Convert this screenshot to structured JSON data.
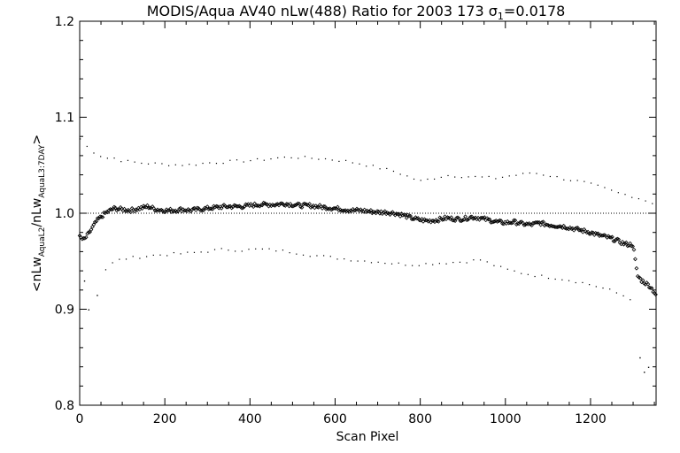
{
  "chart_data": {
    "type": "scatter",
    "title_main": "MODIS/Aqua AV40 nLw(488) Ratio for 2003 173 ",
    "title_sigma": "σ",
    "title_sigma_sub": "1",
    "title_value": "=0.0178",
    "xlabel": "Scan Pixel",
    "ylabel_parts": {
      "open": "<nLw",
      "sub1": "AquaL2",
      "mid": "/nLw",
      "sub2": "AquaL3:7DAY",
      "close": ">"
    },
    "xlim": [
      0,
      1354
    ],
    "ylim": [
      0.8,
      1.2
    ],
    "xticks": [
      0,
      200,
      400,
      600,
      800,
      1000,
      1200
    ],
    "xtick_labels": [
      "0",
      "200",
      "400",
      "600",
      "800",
      "1000",
      "1200"
    ],
    "yticks": [
      0.8,
      0.9,
      1.0,
      1.1,
      1.2
    ],
    "ytick_labels": [
      "0.8",
      "0.9",
      "1.0",
      "1.1",
      "1.2"
    ],
    "reference_line": 1.0,
    "colors": {
      "marks": "#000000",
      "background": "#ffffff"
    },
    "mean_profile": [
      [
        0,
        0.975
      ],
      [
        10,
        0.972
      ],
      [
        20,
        0.978
      ],
      [
        30,
        0.985
      ],
      [
        40,
        0.992
      ],
      [
        60,
        1.0
      ],
      [
        80,
        1.005
      ],
      [
        100,
        1.004
      ],
      [
        120,
        1.003
      ],
      [
        140,
        1.005
      ],
      [
        160,
        1.007
      ],
      [
        180,
        1.004
      ],
      [
        200,
        1.003
      ],
      [
        220,
        1.003
      ],
      [
        240,
        1.004
      ],
      [
        260,
        1.003
      ],
      [
        280,
        1.004
      ],
      [
        300,
        1.005
      ],
      [
        320,
        1.006
      ],
      [
        340,
        1.007
      ],
      [
        360,
        1.007
      ],
      [
        380,
        1.007
      ],
      [
        400,
        1.008
      ],
      [
        420,
        1.009
      ],
      [
        440,
        1.009
      ],
      [
        460,
        1.009
      ],
      [
        480,
        1.01
      ],
      [
        500,
        1.009
      ],
      [
        520,
        1.008
      ],
      [
        540,
        1.008
      ],
      [
        560,
        1.007
      ],
      [
        580,
        1.006
      ],
      [
        600,
        1.005
      ],
      [
        620,
        1.004
      ],
      [
        640,
        1.003
      ],
      [
        660,
        1.003
      ],
      [
        680,
        1.002
      ],
      [
        700,
        1.001
      ],
      [
        720,
        1.001
      ],
      [
        740,
        1.0
      ],
      [
        760,
        0.998
      ],
      [
        780,
        0.995
      ],
      [
        800,
        0.993
      ],
      [
        820,
        0.992
      ],
      [
        840,
        0.993
      ],
      [
        860,
        0.995
      ],
      [
        880,
        0.994
      ],
      [
        900,
        0.994
      ],
      [
        920,
        0.996
      ],
      [
        940,
        0.995
      ],
      [
        960,
        0.993
      ],
      [
        980,
        0.991
      ],
      [
        1000,
        0.99
      ],
      [
        1020,
        0.991
      ],
      [
        1040,
        0.989
      ],
      [
        1060,
        0.988
      ],
      [
        1080,
        0.99
      ],
      [
        1100,
        0.988
      ],
      [
        1120,
        0.987
      ],
      [
        1140,
        0.986
      ],
      [
        1160,
        0.984
      ],
      [
        1180,
        0.982
      ],
      [
        1200,
        0.98
      ],
      [
        1220,
        0.977
      ],
      [
        1240,
        0.975
      ],
      [
        1260,
        0.972
      ],
      [
        1280,
        0.968
      ],
      [
        1300,
        0.967
      ],
      [
        1310,
        0.935
      ],
      [
        1320,
        0.93
      ],
      [
        1340,
        0.924
      ],
      [
        1354,
        0.915
      ]
    ],
    "upper_profile": [
      [
        0,
        1.078
      ],
      [
        20,
        1.068
      ],
      [
        40,
        1.062
      ],
      [
        60,
        1.058
      ],
      [
        80,
        1.058
      ],
      [
        100,
        1.055
      ],
      [
        140,
        1.053
      ],
      [
        180,
        1.052
      ],
      [
        220,
        1.051
      ],
      [
        260,
        1.051
      ],
      [
        300,
        1.053
      ],
      [
        340,
        1.054
      ],
      [
        380,
        1.055
      ],
      [
        420,
        1.056
      ],
      [
        460,
        1.058
      ],
      [
        500,
        1.059
      ],
      [
        540,
        1.058
      ],
      [
        580,
        1.057
      ],
      [
        620,
        1.055
      ],
      [
        660,
        1.052
      ],
      [
        700,
        1.048
      ],
      [
        740,
        1.044
      ],
      [
        780,
        1.037
      ],
      [
        800,
        1.034
      ],
      [
        820,
        1.036
      ],
      [
        860,
        1.04
      ],
      [
        900,
        1.039
      ],
      [
        940,
        1.038
      ],
      [
        980,
        1.037
      ],
      [
        1000,
        1.039
      ],
      [
        1040,
        1.041
      ],
      [
        1060,
        1.043
      ],
      [
        1100,
        1.04
      ],
      [
        1140,
        1.036
      ],
      [
        1180,
        1.033
      ],
      [
        1220,
        1.028
      ],
      [
        1260,
        1.022
      ],
      [
        1300,
        1.018
      ],
      [
        1340,
        1.012
      ],
      [
        1354,
        1.01
      ]
    ],
    "lower_profile": [
      [
        60,
        0.942
      ],
      [
        80,
        0.95
      ],
      [
        100,
        0.953
      ],
      [
        140,
        0.955
      ],
      [
        180,
        0.957
      ],
      [
        220,
        0.958
      ],
      [
        260,
        0.959
      ],
      [
        300,
        0.961
      ],
      [
        340,
        0.963
      ],
      [
        380,
        0.962
      ],
      [
        420,
        0.963
      ],
      [
        460,
        0.962
      ],
      [
        500,
        0.96
      ],
      [
        540,
        0.957
      ],
      [
        580,
        0.955
      ],
      [
        620,
        0.953
      ],
      [
        660,
        0.951
      ],
      [
        700,
        0.95
      ],
      [
        740,
        0.948
      ],
      [
        780,
        0.947
      ],
      [
        820,
        0.948
      ],
      [
        860,
        0.949
      ],
      [
        900,
        0.95
      ],
      [
        940,
        0.952
      ],
      [
        980,
        0.945
      ],
      [
        1000,
        0.942
      ],
      [
        1040,
        0.938
      ],
      [
        1080,
        0.935
      ],
      [
        1120,
        0.933
      ],
      [
        1160,
        0.93
      ],
      [
        1200,
        0.926
      ],
      [
        1240,
        0.921
      ],
      [
        1280,
        0.914
      ],
      [
        1300,
        0.91
      ]
    ],
    "outlier_points": [
      [
        10,
        0.93
      ],
      [
        20,
        0.9
      ],
      [
        40,
        0.915
      ],
      [
        1315,
        0.85
      ],
      [
        1325,
        0.835
      ],
      [
        1335,
        0.84
      ]
    ]
  }
}
